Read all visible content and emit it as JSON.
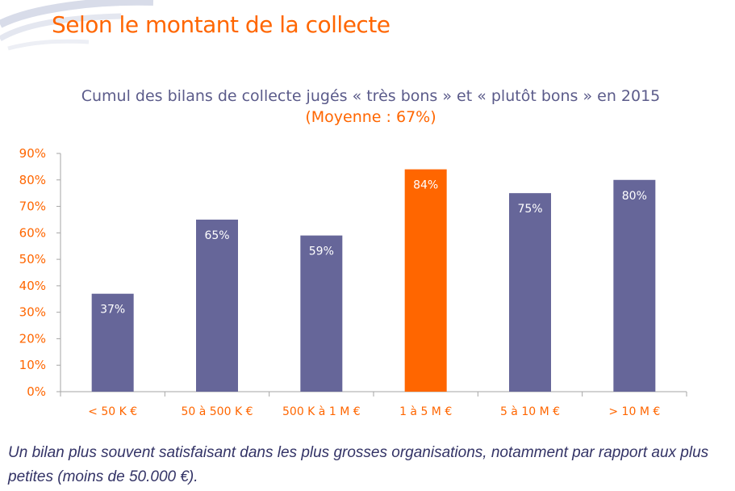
{
  "header": {
    "title": "Selon le montant de la collecte"
  },
  "chart_data": {
    "type": "bar",
    "title": "Cumul des bilans de collecte  jugés « très bons » et « plutôt bons  » en 2015",
    "subtitle": "(Moyenne : 67%)",
    "categories": [
      "< 50 K €",
      "50 à 500 K €",
      "500 K à 1 M €",
      "1 à 5 M €",
      "5 à 10 M €",
      "> 10 M €"
    ],
    "values": [
      37,
      65,
      59,
      84,
      75,
      80
    ],
    "data_labels": [
      "37%",
      "65%",
      "59%",
      "84%",
      "75%",
      "80%"
    ],
    "highlight_index": 3,
    "ylim": [
      0,
      90
    ],
    "yticks": [
      "0%",
      "10%",
      "20%",
      "30%",
      "40%",
      "50%",
      "60%",
      "70%",
      "80%",
      "90%"
    ],
    "xlabel": "",
    "ylabel": "",
    "grid": false,
    "colors": {
      "bar": "#666699",
      "highlight": "#ff6600",
      "tick_label": "#ff6600",
      "data_label": "#ffffff",
      "axis": "#a6a6a6"
    }
  },
  "footnote": "Un bilan plus souvent satisfaisant dans les plus grosses organisations, notamment par rapport aux plus petites (moins de 50.000 €)."
}
